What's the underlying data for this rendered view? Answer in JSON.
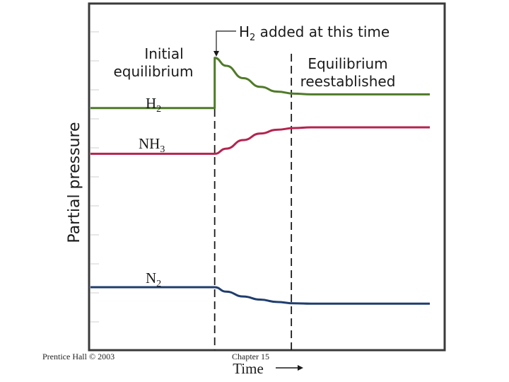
{
  "chart_data": {
    "type": "line",
    "title": "",
    "xlabel": "Time",
    "ylabel": "Partial pressure",
    "grid": false,
    "x_ticks": [],
    "y_ticks": [],
    "xlim": [
      0,
      100
    ],
    "ylim": [
      0,
      100
    ],
    "series": [
      {
        "name": "H2",
        "label_main": "H",
        "label_sub": "2",
        "color": "#4f7a28",
        "x": [
          0,
          36.6,
          36.6,
          40,
          45,
          50,
          55,
          60,
          65,
          100
        ],
        "y": [
          70.0,
          70.0,
          84.6,
          82.3,
          78.7,
          76.2,
          74.8,
          74.2,
          74.0,
          74.0
        ]
      },
      {
        "name": "NH3",
        "label_main": "NH",
        "label_sub": "3",
        "color": "#b3244f",
        "x": [
          0,
          36.6,
          40,
          45,
          50,
          55,
          60,
          65,
          100
        ],
        "y": [
          56.7,
          56.7,
          58.2,
          60.7,
          62.6,
          63.7,
          64.2,
          64.4,
          64.4
        ]
      },
      {
        "name": "N2",
        "label_main": "N",
        "label_sub": "2",
        "color": "#1f3d6e",
        "x": [
          0,
          36.6,
          40,
          45,
          50,
          55,
          60,
          65,
          100
        ],
        "y": [
          17.9,
          17.9,
          16.6,
          15.2,
          14.3,
          13.6,
          13.2,
          13.1,
          13.1
        ]
      }
    ],
    "markers": [
      {
        "x": 36.6,
        "style": "dashed"
      },
      {
        "x": 59.2,
        "style": "dashed"
      }
    ],
    "annotations": {
      "added_main": "H",
      "added_sub": "2",
      "added_rest": " added at this time",
      "initial_line1": "Initial",
      "initial_line2": "equilibrium",
      "reest_line1": "Equilibrium",
      "reest_line2": "reestablished"
    }
  },
  "footer": {
    "left": "Prentice Hall © 2003",
    "center": "Chapter 15"
  },
  "colors": {
    "frame": "#3a3a3a",
    "marker": "#1a1a1a"
  }
}
